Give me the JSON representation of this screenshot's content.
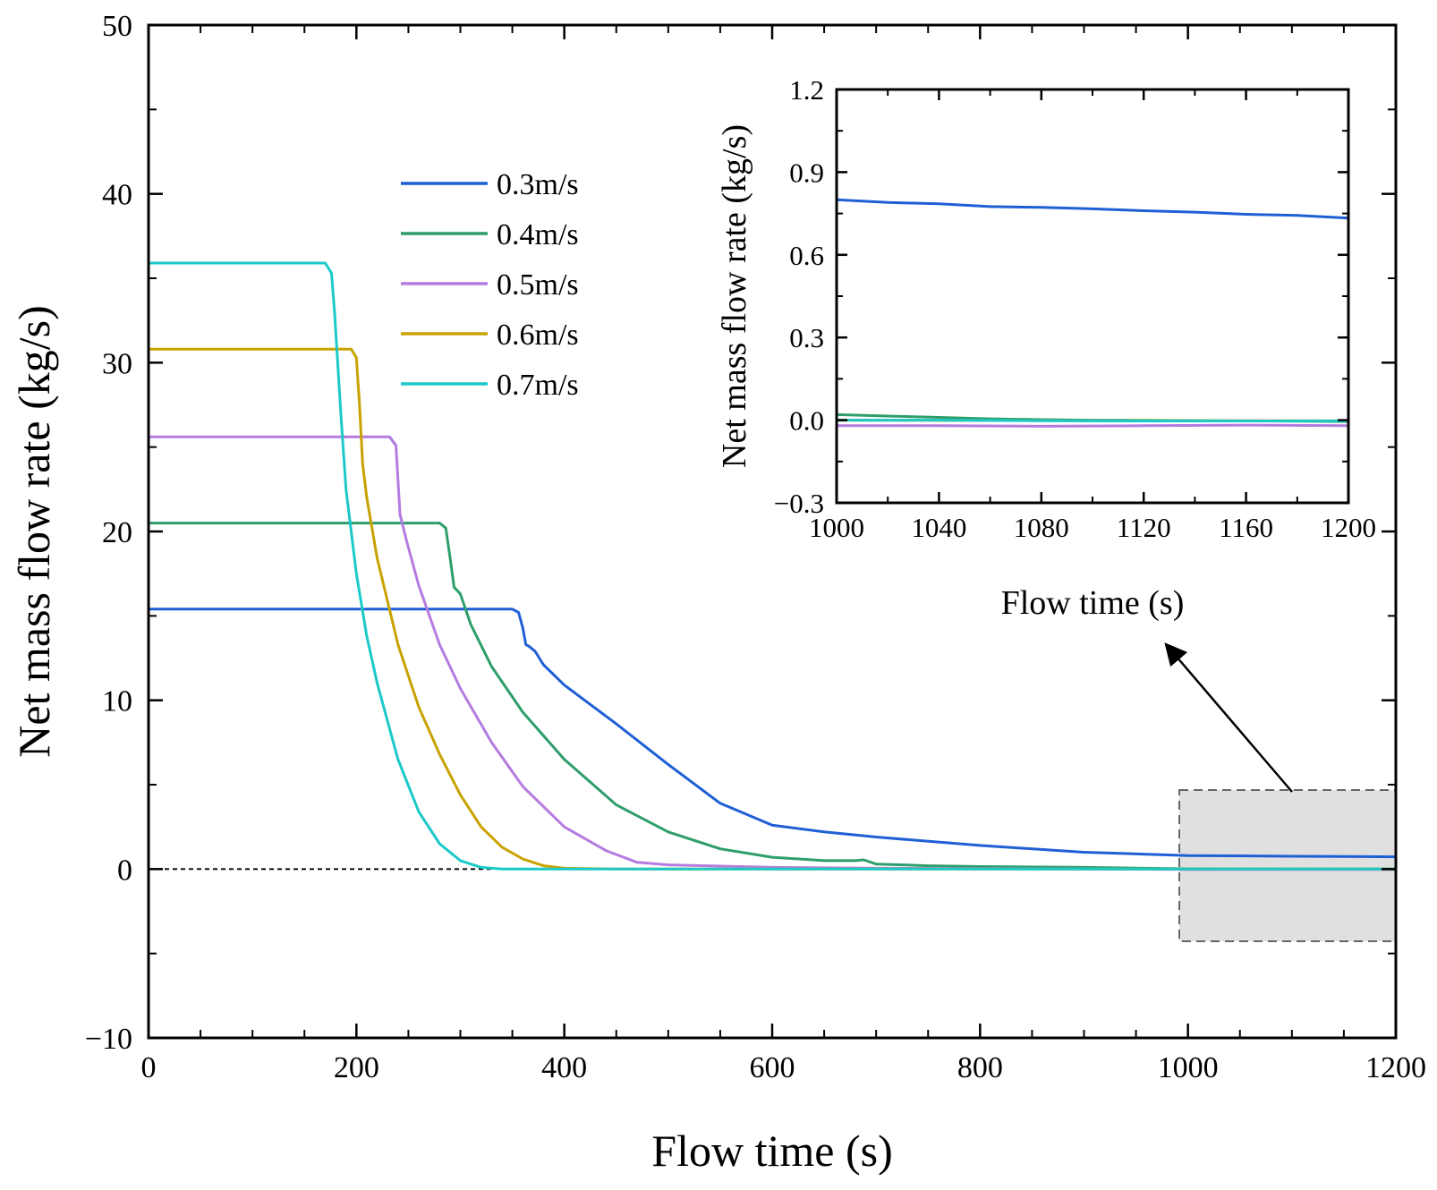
{
  "chart_data": {
    "type": "line",
    "xlabel": "Flow time (s)",
    "ylabel": "Net mass flow rate (kg/s)",
    "xlim": [
      0,
      1200
    ],
    "ylim": [
      -10,
      50
    ],
    "xticks": [
      0,
      200,
      400,
      600,
      800,
      1000,
      1200
    ],
    "yticks": [
      -10,
      0,
      10,
      20,
      30,
      40,
      50
    ],
    "xtick_labels": [
      "0",
      "200",
      "400",
      "600",
      "800",
      "1000",
      "1200"
    ],
    "ytick_labels": [
      "−10",
      "0",
      "10",
      "20",
      "30",
      "40",
      "50"
    ],
    "reference_line": {
      "y": 0,
      "x_range": [
        0,
        330
      ],
      "style": "dashed"
    },
    "zoom_box": {
      "x_range": [
        995,
        1200
      ],
      "y_range": [
        -4.3,
        4.6
      ]
    },
    "legend_position": "upper-middle",
    "series": [
      {
        "name": "0.3m/s",
        "color": "#1f5fd6",
        "x": [
          0,
          350,
          356,
          360,
          363,
          366,
          372,
          380,
          400,
          450,
          500,
          550,
          600,
          650,
          700,
          800,
          900,
          1000,
          1100,
          1200
        ],
        "y": [
          15.4,
          15.4,
          15.2,
          14.3,
          13.3,
          13.2,
          12.9,
          12.1,
          10.9,
          8.6,
          6.2,
          3.9,
          2.6,
          2.2,
          1.9,
          1.4,
          1.0,
          0.8,
          0.76,
          0.73
        ]
      },
      {
        "name": "0.4m/s",
        "color": "#2e9e6a",
        "x": [
          0,
          280,
          286,
          290,
          294,
          300,
          310,
          330,
          360,
          400,
          450,
          500,
          550,
          600,
          650,
          680,
          688,
          700,
          750,
          800,
          900,
          1000,
          1200
        ],
        "y": [
          20.5,
          20.5,
          20.2,
          18.5,
          16.7,
          16.3,
          14.5,
          12.0,
          9.3,
          6.5,
          3.8,
          2.2,
          1.2,
          0.7,
          0.5,
          0.5,
          0.55,
          0.3,
          0.2,
          0.15,
          0.1,
          0.02,
          0.0
        ]
      },
      {
        "name": "0.5m/s",
        "color": "#b57be0",
        "x": [
          0,
          232,
          238,
          242,
          248,
          260,
          280,
          300,
          330,
          360,
          400,
          440,
          470,
          500,
          600,
          700,
          1000,
          1200
        ],
        "y": [
          25.6,
          25.6,
          25.1,
          21.0,
          19.5,
          16.8,
          13.3,
          10.7,
          7.5,
          4.9,
          2.5,
          1.1,
          0.4,
          0.25,
          0.1,
          0.05,
          -0.02,
          -0.02
        ]
      },
      {
        "name": "0.6m/s",
        "color": "#c9a200",
        "x": [
          0,
          195,
          200,
          203,
          206,
          210,
          220,
          240,
          260,
          280,
          300,
          320,
          340,
          360,
          380,
          400,
          450,
          1200
        ],
        "y": [
          30.8,
          30.8,
          30.3,
          27.5,
          24.0,
          22.0,
          18.4,
          13.3,
          9.6,
          6.8,
          4.4,
          2.5,
          1.3,
          0.6,
          0.2,
          0.05,
          0.0,
          0.0
        ]
      },
      {
        "name": "0.7m/s",
        "color": "#1cc9c9",
        "x": [
          0,
          170,
          176,
          179,
          182,
          185,
          190,
          200,
          210,
          220,
          240,
          260,
          280,
          300,
          320,
          340,
          1200
        ],
        "y": [
          35.9,
          35.9,
          35.3,
          33.0,
          30.0,
          27.0,
          22.5,
          17.5,
          13.8,
          11.0,
          6.5,
          3.4,
          1.5,
          0.5,
          0.1,
          0.0,
          0.0
        ]
      }
    ],
    "inset": {
      "type": "line",
      "xlabel": "Flow time (s)",
      "ylabel": "Net mass flow rate (kg/s)",
      "xlim": [
        1000,
        1200
      ],
      "ylim": [
        -0.3,
        1.2
      ],
      "xticks": [
        1000,
        1040,
        1080,
        1120,
        1160,
        1200
      ],
      "yticks": [
        -0.3,
        0.0,
        0.3,
        0.6,
        0.9,
        1.2
      ],
      "xtick_labels": [
        "1000",
        "1040",
        "1080",
        "1120",
        "1160",
        "1200"
      ],
      "ytick_labels": [
        "−0.3",
        "0.0",
        "0.3",
        "0.6",
        "0.9",
        "1.2"
      ],
      "series": [
        {
          "name": "0.3m/s",
          "color": "#1f5fd6",
          "x": [
            1000,
            1020,
            1040,
            1060,
            1080,
            1100,
            1120,
            1140,
            1160,
            1180,
            1200
          ],
          "y": [
            0.8,
            0.79,
            0.785,
            0.775,
            0.772,
            0.767,
            0.76,
            0.755,
            0.747,
            0.743,
            0.733
          ]
        },
        {
          "name": "0.4m/s",
          "color": "#2e9e6a",
          "x": [
            1000,
            1020,
            1040,
            1060,
            1080,
            1100,
            1150,
            1200
          ],
          "y": [
            0.02,
            0.015,
            0.01,
            0.005,
            0.002,
            0.0,
            -0.002,
            -0.005
          ]
        },
        {
          "name": "0.5m/s",
          "color": "#b57be0",
          "x": [
            1000,
            1040,
            1080,
            1120,
            1160,
            1200
          ],
          "y": [
            -0.02,
            -0.02,
            -0.022,
            -0.02,
            -0.018,
            -0.02
          ]
        },
        {
          "name": "0.6m/s",
          "color": "#c9a200",
          "x": [
            1000,
            1100,
            1200
          ],
          "y": [
            0.0,
            -0.002,
            -0.002
          ]
        },
        {
          "name": "0.7m/s",
          "color": "#1cc9c9",
          "x": [
            1000,
            1040,
            1080,
            1120,
            1160,
            1200
          ],
          "y": [
            0.0,
            0.0,
            -0.002,
            -0.003,
            -0.003,
            -0.003
          ]
        }
      ]
    }
  }
}
